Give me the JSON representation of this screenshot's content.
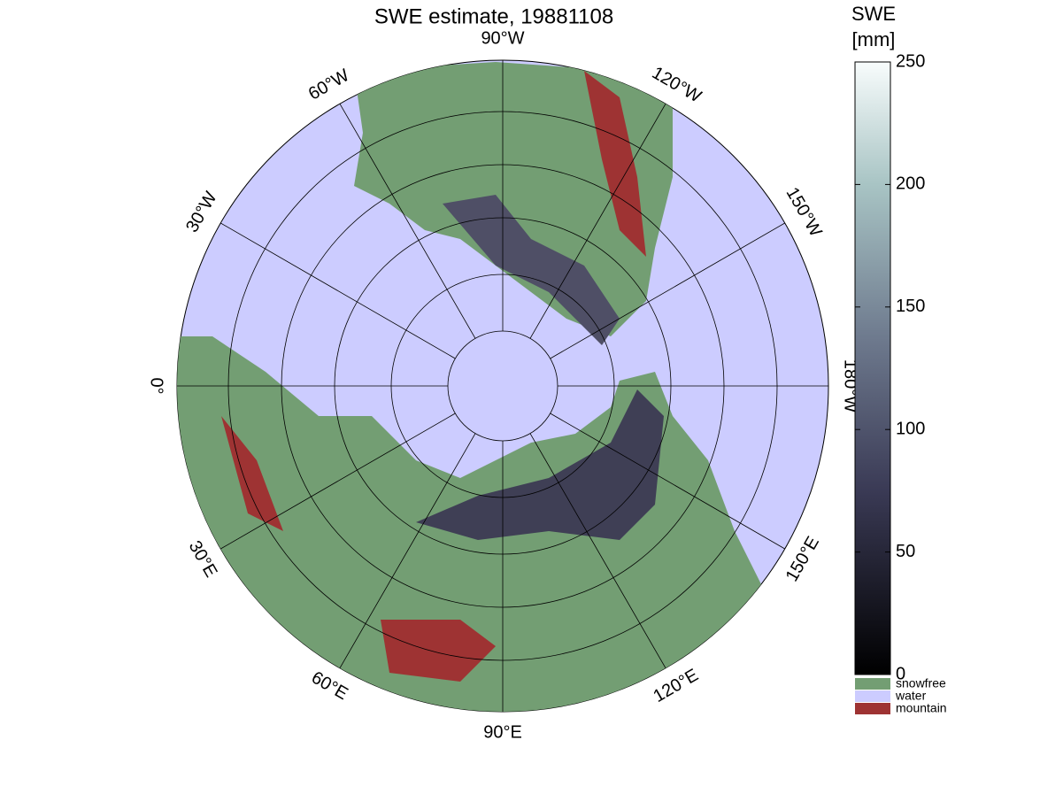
{
  "title": "SWE estimate, 19881108",
  "map": {
    "longitude_labels": [
      {
        "lon": -90,
        "label": "90°W"
      },
      {
        "lon": -60,
        "label": "60°W"
      },
      {
        "lon": -30,
        "label": "30°W"
      },
      {
        "lon": 0,
        "label": "0°"
      },
      {
        "lon": 30,
        "label": "30°E"
      },
      {
        "lon": 60,
        "label": "60°E"
      },
      {
        "lon": 90,
        "label": "90°E"
      },
      {
        "lon": 120,
        "label": "120°E"
      },
      {
        "lon": 150,
        "label": "150°E"
      },
      {
        "lon": 180,
        "label": "180°W"
      },
      {
        "lon": -150,
        "label": "150°W"
      },
      {
        "lon": -120,
        "label": "120°W"
      }
    ]
  },
  "colorbar": {
    "label": [
      "SWE",
      "[mm]"
    ],
    "lim": [
      0,
      250
    ],
    "ticks": [
      0,
      50,
      100,
      150,
      200,
      250
    ],
    "categories": [
      {
        "name": "snowfree",
        "color": "#739e73"
      },
      {
        "name": "water",
        "color": "#ccccff"
      },
      {
        "name": "mountain",
        "color": "#9e3333"
      }
    ]
  }
}
